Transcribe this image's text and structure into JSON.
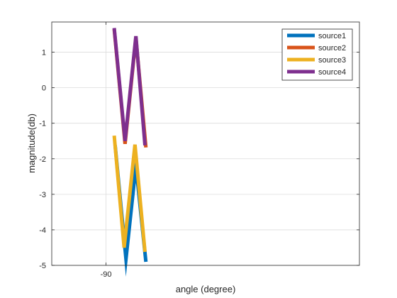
{
  "chart_data": {
    "type": "line",
    "title": "",
    "xlabel": "angle (degree)",
    "ylabel": "magnitude(db)",
    "xlim": [
      -93,
      -76
    ],
    "ylim": [
      -5,
      1.85
    ],
    "xticks": [
      -90
    ],
    "xtick_labels": [
      "-90"
    ],
    "yticks": [
      1,
      0,
      -1,
      -2,
      -3,
      -4,
      -5
    ],
    "ytick_labels": [
      "1",
      "0",
      "-1",
      "-2",
      "-3",
      "-4",
      "-5"
    ],
    "grid": true,
    "legend_position": "top-right",
    "series": [
      {
        "name": "source1",
        "color": "#0072BD",
        "x": [
          -89.5,
          -88.9,
          -88.35,
          -87.8
        ],
        "y": [
          -1.62,
          -4.82,
          -2.2,
          -4.9
        ]
      },
      {
        "name": "source2",
        "color": "#D95319",
        "x": [
          -89.55,
          -88.95,
          -88.35,
          -87.8
        ],
        "y": [
          1.65,
          -1.58,
          1.4,
          -1.68
        ]
      },
      {
        "name": "source3",
        "color": "#EDB120",
        "x": [
          -89.55,
          -89.0,
          -88.4,
          -87.85
        ],
        "y": [
          -1.35,
          -4.5,
          -1.6,
          -4.62
        ]
      },
      {
        "name": "source4",
        "color": "#7E2F8E",
        "x": [
          -89.55,
          -88.95,
          -88.35,
          -87.85
        ],
        "y": [
          1.68,
          -1.5,
          1.45,
          -1.62
        ]
      }
    ]
  }
}
